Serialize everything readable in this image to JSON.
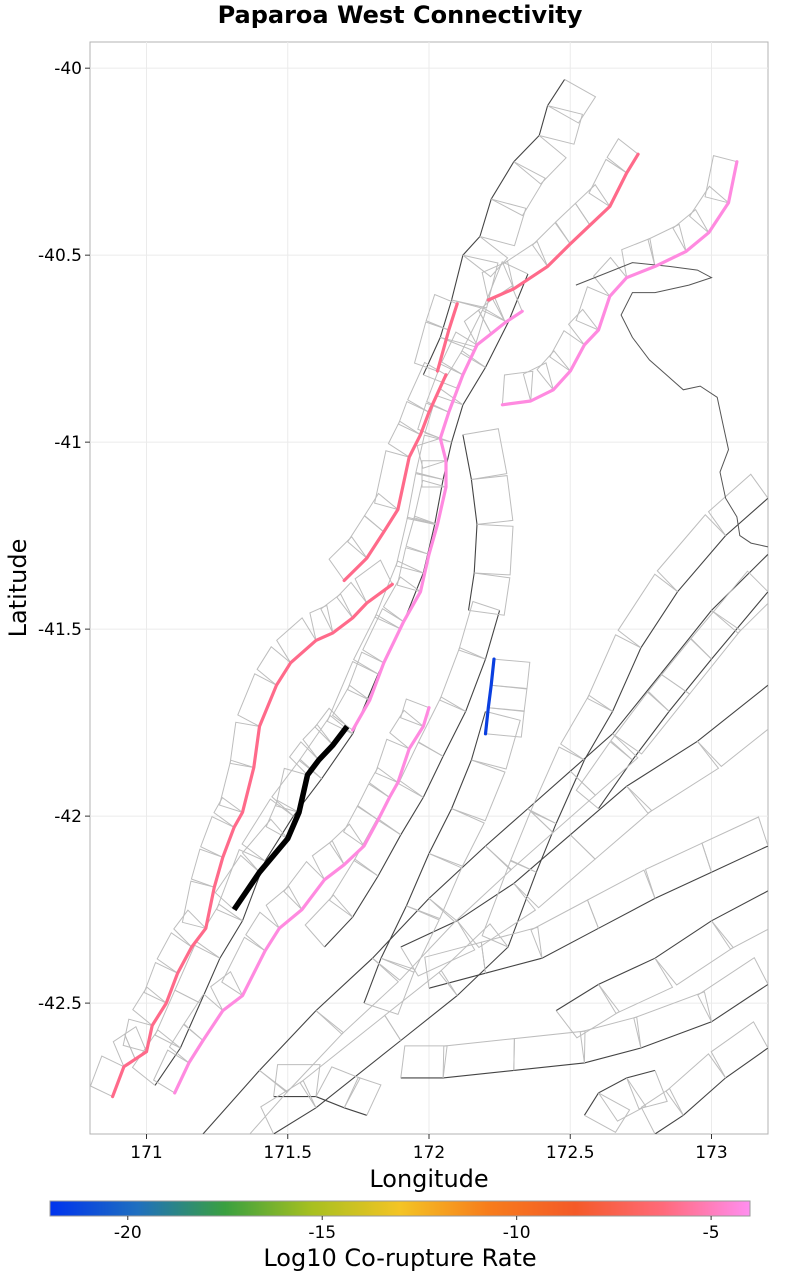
{
  "chart_data": {
    "type": "map",
    "title": "Paparoa West Connectivity",
    "xlabel": "Longitude",
    "ylabel": "Latitude",
    "xlim": [
      170.8,
      173.2
    ],
    "ylim": [
      -42.85,
      -39.93
    ],
    "x_ticks": [
      171,
      171.5,
      172,
      172.5,
      173
    ],
    "x_tick_labels": [
      "171",
      "171.5",
      "172",
      "172.5",
      "173"
    ],
    "y_ticks": [
      -40,
      -40.5,
      -41,
      -41.5,
      -42,
      -42.5
    ],
    "y_tick_labels": [
      "-40",
      "-40.5",
      "-41",
      "-41.5",
      "-42",
      "-42.5"
    ],
    "colorbar": {
      "label": "Log10 Co-rupture Rate",
      "range": [
        -22,
        -4
      ],
      "ticks": [
        -20,
        -15,
        -10,
        -5
      ],
      "tick_labels": [
        "-20",
        "-15",
        "-10",
        "-5"
      ],
      "colors": [
        "#0033ee",
        "#1f6fbf",
        "#3aa040",
        "#a8c020",
        "#f4c424",
        "#f77d1c",
        "#f45a28",
        "#ff6a7a",
        "#ff8ef0"
      ]
    },
    "target_fault": {
      "name": "Paparoa West",
      "color": "#000000",
      "points": [
        [
          171.31,
          -42.25
        ],
        [
          171.4,
          -42.15
        ],
        [
          171.5,
          -42.06
        ],
        [
          171.54,
          -41.99
        ],
        [
          171.57,
          -41.89
        ],
        [
          171.61,
          -41.85
        ],
        [
          171.66,
          -41.81
        ],
        [
          171.71,
          -41.76
        ]
      ]
    },
    "colored_faults": [
      {
        "log10_rate": -6,
        "color": "#ff6a8a",
        "points": [
          [
            170.88,
            -42.75
          ],
          [
            170.92,
            -42.67
          ],
          [
            170.96,
            -42.65
          ],
          [
            171.0,
            -42.63
          ],
          [
            171.02,
            -42.56
          ],
          [
            171.07,
            -42.5
          ],
          [
            171.11,
            -42.42
          ],
          [
            171.16,
            -42.35
          ],
          [
            171.21,
            -42.3
          ],
          [
            171.24,
            -42.19
          ],
          [
            171.27,
            -42.11
          ],
          [
            171.31,
            -42.03
          ],
          [
            171.34,
            -41.99
          ],
          [
            171.38,
            -41.87
          ],
          [
            171.4,
            -41.76
          ],
          [
            171.46,
            -41.65
          ],
          [
            171.51,
            -41.59
          ],
          [
            171.6,
            -41.53
          ],
          [
            171.66,
            -41.51
          ],
          [
            171.73,
            -41.47
          ],
          [
            171.78,
            -41.43
          ],
          [
            171.87,
            -41.38
          ]
        ]
      },
      {
        "log10_rate": -6,
        "color": "#ff6a8a",
        "points": [
          [
            171.7,
            -41.37
          ],
          [
            171.78,
            -41.31
          ],
          [
            171.84,
            -41.24
          ],
          [
            171.89,
            -41.18
          ],
          [
            171.93,
            -41.04
          ],
          [
            171.97,
            -40.98
          ],
          [
            172.0,
            -40.92
          ],
          [
            172.06,
            -40.82
          ]
        ]
      },
      {
        "log10_rate": -6,
        "color": "#ff6a8a",
        "points": [
          [
            172.03,
            -40.81
          ],
          [
            172.07,
            -40.7
          ],
          [
            172.1,
            -40.63
          ]
        ]
      },
      {
        "log10_rate": -6,
        "color": "#ff6a8a",
        "points": [
          [
            172.21,
            -40.62
          ],
          [
            172.3,
            -40.59
          ],
          [
            172.42,
            -40.53
          ],
          [
            172.5,
            -40.47
          ],
          [
            172.57,
            -40.42
          ],
          [
            172.64,
            -40.37
          ],
          [
            172.7,
            -40.28
          ],
          [
            172.74,
            -40.23
          ]
        ]
      },
      {
        "log10_rate": -4.5,
        "color": "#ff8ae0",
        "points": [
          [
            171.1,
            -42.74
          ],
          [
            171.15,
            -42.66
          ],
          [
            171.2,
            -42.6
          ],
          [
            171.27,
            -42.52
          ],
          [
            171.34,
            -42.48
          ],
          [
            171.42,
            -42.36
          ],
          [
            171.47,
            -42.3
          ],
          [
            171.55,
            -42.25
          ],
          [
            171.63,
            -42.17
          ],
          [
            171.7,
            -42.13
          ],
          [
            171.77,
            -42.08
          ],
          [
            171.82,
            -42.01
          ],
          [
            171.86,
            -41.95
          ],
          [
            171.89,
            -41.91
          ],
          [
            171.93,
            -41.82
          ],
          [
            171.98,
            -41.76
          ],
          [
            172.0,
            -41.71
          ]
        ]
      },
      {
        "log10_rate": -4.5,
        "color": "#ff8ae0",
        "points": [
          [
            171.73,
            -41.77
          ],
          [
            171.79,
            -41.69
          ],
          [
            171.84,
            -41.59
          ],
          [
            171.91,
            -41.48
          ],
          [
            171.97,
            -41.4
          ],
          [
            172.0,
            -41.3
          ],
          [
            172.03,
            -41.22
          ],
          [
            172.06,
            -41.12
          ],
          [
            172.06,
            -41.05
          ],
          [
            172.04,
            -40.99
          ],
          [
            172.07,
            -40.92
          ],
          [
            172.12,
            -40.82
          ],
          [
            172.17,
            -40.74
          ],
          [
            172.22,
            -40.71
          ],
          [
            172.27,
            -40.68
          ],
          [
            172.33,
            -40.65
          ]
        ]
      },
      {
        "log10_rate": -4.5,
        "color": "#ff8ae0",
        "points": [
          [
            172.26,
            -40.9
          ],
          [
            172.36,
            -40.89
          ],
          [
            172.44,
            -40.86
          ],
          [
            172.5,
            -40.81
          ],
          [
            172.55,
            -40.74
          ],
          [
            172.6,
            -40.7
          ],
          [
            172.64,
            -40.61
          ],
          [
            172.7,
            -40.56
          ],
          [
            172.8,
            -40.53
          ],
          [
            172.91,
            -40.49
          ],
          [
            172.99,
            -40.44
          ],
          [
            173.06,
            -40.36
          ],
          [
            173.09,
            -40.25
          ]
        ]
      },
      {
        "log10_rate": -21,
        "color": "#0a3fe0",
        "points": [
          [
            172.23,
            -41.58
          ],
          [
            172.22,
            -41.65
          ],
          [
            172.21,
            -41.71
          ],
          [
            172.2,
            -41.78
          ]
        ]
      }
    ]
  }
}
